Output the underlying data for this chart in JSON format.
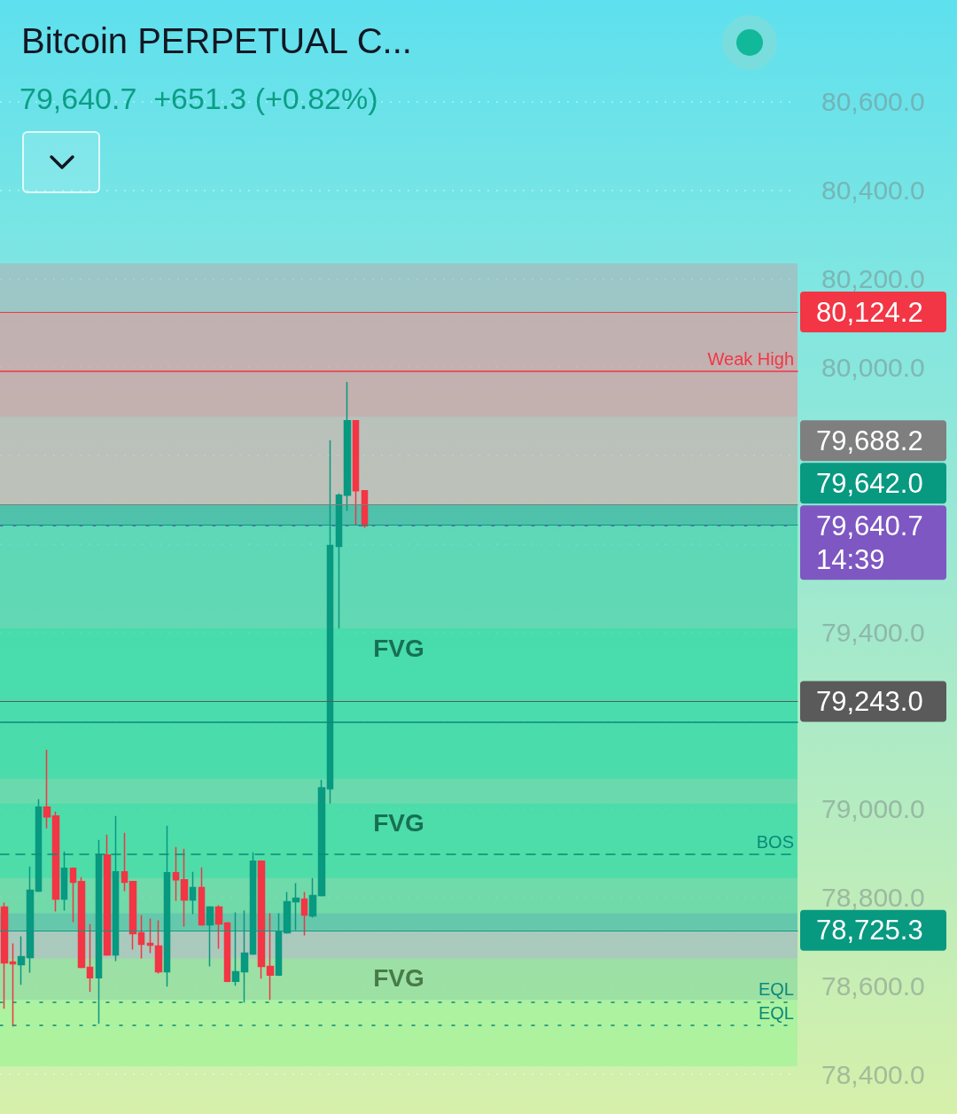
{
  "chart_data": {
    "type": "candlestick",
    "title": "Bitcoin PERPETUAL C...",
    "subtitle": "79,640.7  +651.3 (+0.82%)",
    "categories": [
      null,
      null,
      null,
      null,
      null,
      null,
      null,
      null,
      null,
      null,
      null,
      null,
      null,
      null,
      null,
      null,
      null,
      null,
      null,
      null,
      null,
      null,
      null,
      null,
      null,
      null,
      null,
      null,
      null,
      null,
      null,
      null,
      null,
      null,
      null,
      null,
      null,
      null,
      null,
      null,
      null,
      null,
      null,
      null,
      null,
      null,
      null,
      null,
      null,
      null,
      null,
      null,
      null,
      null,
      null,
      null,
      null,
      null,
      null,
      null,
      null,
      null,
      null,
      null,
      null,
      null,
      null,
      null,
      null,
      null,
      null,
      null,
      null,
      null,
      null,
      null,
      null,
      null,
      null,
      null,
      null,
      null,
      null,
      null,
      null,
      null,
      null,
      null,
      null,
      null,
      null,
      null,
      null
    ],
    "ohlc": [
      [
        78778,
        78788,
        78548,
        78652
      ],
      [
        78654,
        78696,
        78508,
        78650
      ],
      [
        78648,
        78712,
        78602,
        78666
      ],
      [
        78664,
        78870,
        78630,
        78816
      ],
      [
        78814,
        79022,
        78812,
        79004
      ],
      [
        79004,
        79134,
        78956,
        78982
      ],
      [
        78984,
        78994,
        78768,
        78796
      ],
      [
        78796,
        78904,
        78770,
        78866
      ],
      [
        78866,
        78868,
        78744,
        78834
      ],
      [
        78836,
        78846,
        78640,
        78642
      ],
      [
        78642,
        78740,
        78586,
        78618
      ],
      [
        78618,
        78930,
        78514,
        78896
      ],
      [
        78896,
        78942,
        78668,
        78670
      ],
      [
        78670,
        78984,
        78656,
        78858
      ],
      [
        78858,
        78946,
        78814,
        78834
      ],
      [
        78836,
        78836,
        78682,
        78718
      ],
      [
        78720,
        78760,
        78662,
        78694
      ],
      [
        78696,
        78752,
        78674,
        78692
      ],
      [
        78690,
        78748,
        78628,
        78632
      ],
      [
        78632,
        78962,
        78598,
        78856
      ],
      [
        78856,
        78914,
        78792,
        78840
      ],
      [
        78840,
        78910,
        78734,
        78794
      ],
      [
        78794,
        78858,
        78762,
        78822
      ],
      [
        78822,
        78868,
        78736,
        78738
      ],
      [
        78738,
        78780,
        78644,
        78778
      ],
      [
        78778,
        78782,
        78684,
        78740
      ],
      [
        78742,
        78744,
        78608,
        78610
      ],
      [
        78610,
        78766,
        78600,
        78632
      ],
      [
        78632,
        78770,
        78562,
        78674
      ],
      [
        78672,
        78902,
        78670,
        78882
      ],
      [
        78882,
        78884,
        78616,
        78644
      ],
      [
        78644,
        78764,
        78568,
        78624
      ],
      [
        78624,
        78764,
        78622,
        78722
      ],
      [
        78720,
        78812,
        78718,
        78790
      ],
      [
        78790,
        78832,
        78726,
        78798
      ],
      [
        78796,
        78812,
        78714,
        78760
      ],
      [
        78758,
        78844,
        78754,
        78804
      ],
      [
        78804,
        79066,
        78802,
        79048
      ],
      [
        79046,
        79834,
        79012,
        79596
      ],
      [
        79594,
        79714,
        79408,
        79710
      ],
      [
        79710,
        79966,
        79674,
        79878
      ],
      [
        79878,
        79878,
        79642,
        79720
      ],
      [
        79720,
        79720,
        79636,
        79640.7
      ],
      null,
      null,
      null,
      null,
      null,
      null,
      null,
      null,
      null,
      null,
      null,
      null,
      null,
      null,
      null,
      null,
      null,
      null,
      null,
      null,
      null,
      null,
      null,
      null,
      null,
      null,
      null,
      null,
      null,
      null,
      null,
      null,
      null,
      null,
      null,
      null,
      null,
      null,
      null,
      null,
      null,
      null,
      null,
      null,
      null,
      null,
      null,
      null,
      null,
      null
    ],
    "colors": [
      "#f23645",
      "#f23645",
      "#089981",
      "#089981",
      "#089981",
      "#f23645",
      "#f23645",
      "#089981",
      "#f23645",
      "#f23645",
      "#f23645",
      "#089981",
      "#f23645",
      "#089981",
      "#f23645",
      "#f23645",
      "#f23645",
      "#f23645",
      "#f23645",
      "#089981",
      "#f23645",
      "#f23645",
      "#089981",
      "#f23645",
      "#089981",
      "#f23645",
      "#f23645",
      "#089981",
      "#089981",
      "#089981",
      "#f23645",
      "#f23645",
      "#089981",
      "#089981",
      "#089981",
      "#f23645",
      "#089981",
      "#089981",
      "#089981",
      "#089981",
      "#089981",
      "#f23645",
      "#f23645",
      null,
      null,
      null,
      null,
      null,
      null,
      null,
      null,
      null,
      null,
      null,
      null,
      null,
      null,
      null,
      null,
      null,
      null,
      null,
      null,
      null,
      null,
      null,
      null,
      null,
      null,
      null,
      null,
      null,
      null,
      null,
      null,
      null,
      null,
      null,
      null,
      null,
      null,
      null,
      null,
      null,
      null,
      null,
      null,
      null,
      null,
      null,
      null,
      null,
      null
    ],
    "ylim": [
      78310,
      80830
    ],
    "yticks": [
      {
        "value": 78400,
        "label": "78,400.0"
      },
      {
        "value": 78600,
        "label": "78,600.0"
      },
      {
        "value": 78800,
        "label": "78,800.0"
      },
      {
        "value": 79000,
        "label": "79,000.0"
      },
      {
        "value": 79200,
        "label": null
      },
      {
        "value": 79400,
        "label": "79,400.0"
      },
      {
        "value": 79600,
        "label": null
      },
      {
        "value": 79800,
        "label": null
      },
      {
        "value": 80000,
        "label": "80,000.0"
      },
      {
        "value": 80200,
        "label": "80,200.0"
      },
      {
        "value": 80400,
        "label": "80,400.0"
      },
      {
        "value": 80600,
        "label": "80,600.0"
      }
    ],
    "tick_labels": "y",
    "grid": "y",
    "bands": [
      {
        "axis": "y",
        "from": 79888,
        "to": 80234,
        "color": "#b7a6ac"
      },
      {
        "axis": "y",
        "from": 78568,
        "to": 78764,
        "color": "#8fa6c4"
      },
      {
        "axis": "y",
        "from": 78418,
        "to": 78662,
        "label": "FVG",
        "color": "#8ef58e"
      },
      {
        "axis": "y",
        "from": 78725.3,
        "to": 79642.0,
        "color": "#22c89a"
      },
      {
        "axis": "y",
        "from": 79642.0,
        "to": 79688.2,
        "color": "#089981"
      },
      {
        "axis": "y",
        "from": 79688.2,
        "to": 80124.2,
        "color": "#e39c9c"
      },
      {
        "axis": "y",
        "from": 79068,
        "to": 79408,
        "label": "FVG",
        "color": "#2ee0a8"
      },
      {
        "axis": "y",
        "from": 78844,
        "to": 79012,
        "label": "FVG",
        "color": "#2ee0a8"
      }
    ],
    "ref_lines": [
      {
        "axis": "y",
        "value": 80124.2,
        "label": "80,124.2",
        "color": "#f23645"
      },
      {
        "axis": "y",
        "value": 79688.2,
        "label": "79,688.2",
        "color": "#7f7f7f"
      },
      {
        "axis": "y",
        "value": 79642.0,
        "label": "79,642.0",
        "color": "#089981"
      },
      {
        "axis": "y",
        "value": 79640.7,
        "label": "79,640.7\n14:39",
        "color": "#7e57c2",
        "line_style": "dotted"
      },
      {
        "axis": "y",
        "value": 79243.0,
        "label": "79,243.0",
        "color": "#5a5a5a"
      },
      {
        "axis": "y",
        "value": 78725.3,
        "label": "78,725.3",
        "color": "#089981"
      },
      {
        "axis": "y",
        "value": 79990,
        "label": "Weak High",
        "color": "#f23645"
      },
      {
        "axis": "y",
        "value": 79196,
        "color": "#0a8a78"
      },
      {
        "axis": "y",
        "value": 78898,
        "label": "BOS",
        "color": "#0a8a78",
        "line_style": "dashed"
      },
      {
        "axis": "y",
        "value": 78564,
        "label": "EQL",
        "color": "#0a8a78",
        "line_style": "dotted"
      },
      {
        "axis": "y",
        "value": 78510,
        "label": "EQL",
        "color": "#0a8a78",
        "line_style": "dotted"
      }
    ]
  }
}
